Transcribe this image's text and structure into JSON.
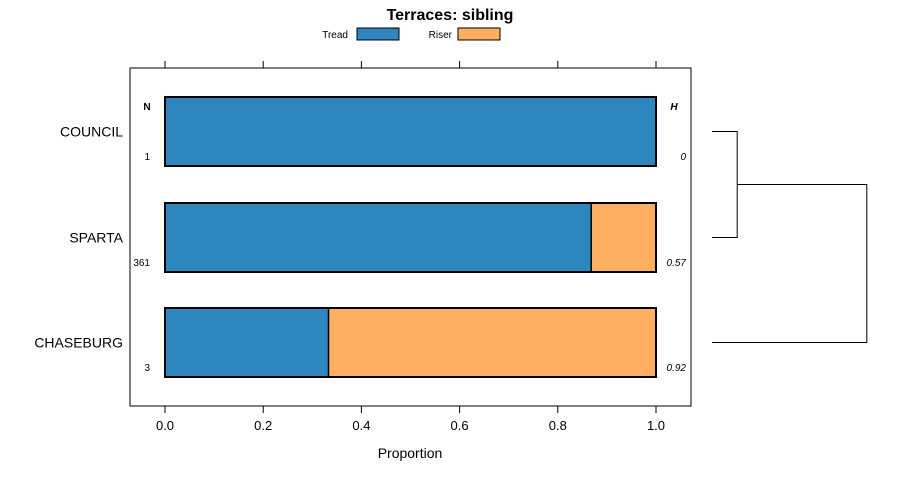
{
  "chart_data": {
    "type": "bar",
    "orientation": "horizontal",
    "stacked": true,
    "title": "Terraces: sibling",
    "xlabel": "Proportion",
    "ylabel": "",
    "xlim": [
      -0.07,
      1.07
    ],
    "xticks": [
      0.0,
      0.2,
      0.4,
      0.6,
      0.8,
      1.0
    ],
    "xtick_labels": [
      "0.0",
      "0.2",
      "0.4",
      "0.6",
      "0.8",
      "1.0"
    ],
    "categories": [
      "COUNCIL",
      "SPARTA",
      "CHASEBURG"
    ],
    "series": [
      {
        "name": "Tread",
        "color": "#2e86bf",
        "values": [
          1.0,
          0.868,
          0.333
        ]
      },
      {
        "name": "Riser",
        "color": "#fdae61",
        "values": [
          0.0,
          0.132,
          0.667
        ]
      }
    ],
    "n_header": "N",
    "h_header": "H",
    "n_values": [
      "1",
      "361",
      "3"
    ],
    "h_values": [
      "0",
      "0.57",
      "0.92"
    ],
    "legend_position": "top",
    "dendrogram": {
      "description_free": true,
      "merges": [
        {
          "members": [
            "COUNCIL",
            "SPARTA"
          ],
          "height": 0.14
        },
        {
          "members": [
            "COUNCIL+SPARTA",
            "CHASEBURG"
          ],
          "height": 0.86
        }
      ]
    }
  }
}
